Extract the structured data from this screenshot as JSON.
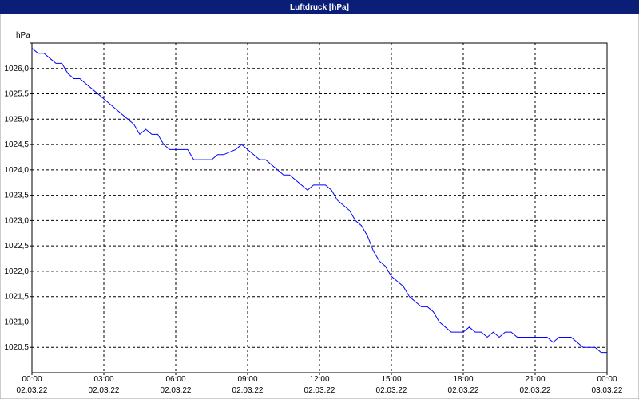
{
  "chart_data": {
    "type": "line",
    "title": "Luftdruck [hPa]",
    "y_label": "hPa",
    "x": [
      0,
      0.25,
      0.5,
      0.75,
      1,
      1.25,
      1.5,
      1.75,
      2,
      2.25,
      2.5,
      2.75,
      3,
      3.25,
      3.5,
      3.75,
      4,
      4.25,
      4.5,
      4.75,
      5,
      5.25,
      5.5,
      5.75,
      6,
      6.5,
      6.75,
      7,
      7.5,
      7.75,
      8,
      8.5,
      8.75,
      9,
      9.25,
      9.5,
      9.75,
      10,
      10.25,
      10.5,
      10.75,
      11,
      11.25,
      11.5,
      11.75,
      12,
      12.25,
      12.5,
      12.75,
      13,
      13.25,
      13.5,
      13.75,
      14,
      14.25,
      14.5,
      14.75,
      15,
      15.25,
      15.5,
      15.75,
      16,
      16.25,
      16.5,
      16.75,
      17,
      17.25,
      17.5,
      18,
      18.25,
      18.5,
      18.75,
      19,
      19.25,
      19.5,
      19.75,
      20,
      20.25,
      20.5,
      21,
      21.5,
      21.75,
      22,
      22.5,
      23,
      23.5,
      23.75,
      24
    ],
    "series": [
      {
        "name": "Luftdruck",
        "color": "#0000ff",
        "values": [
          1026.4,
          1026.3,
          1026.3,
          1026.2,
          1026.1,
          1026.1,
          1025.9,
          1025.8,
          1025.8,
          1025.7,
          1025.6,
          1025.5,
          1025.4,
          1025.3,
          1025.2,
          1025.1,
          1025.0,
          1024.9,
          1024.7,
          1024.8,
          1024.7,
          1024.7,
          1024.5,
          1024.4,
          1024.4,
          1024.4,
          1024.2,
          1024.2,
          1024.2,
          1024.3,
          1024.3,
          1024.4,
          1024.5,
          1024.4,
          1024.3,
          1024.2,
          1024.2,
          1024.1,
          1024.0,
          1023.9,
          1023.9,
          1023.8,
          1023.7,
          1023.6,
          1023.7,
          1023.7,
          1023.7,
          1023.6,
          1023.4,
          1023.3,
          1023.2,
          1023.0,
          1022.9,
          1022.7,
          1022.4,
          1022.2,
          1022.1,
          1021.9,
          1021.8,
          1021.7,
          1021.5,
          1021.4,
          1021.3,
          1021.3,
          1021.2,
          1021.0,
          1020.9,
          1020.8,
          1020.8,
          1020.9,
          1020.8,
          1020.8,
          1020.7,
          1020.8,
          1020.7,
          1020.8,
          1020.8,
          1020.7,
          1020.7,
          1020.7,
          1020.7,
          1020.6,
          1020.7,
          1020.7,
          1020.5,
          1020.5,
          1020.4,
          1020.4
        ]
      }
    ],
    "xlim": [
      0,
      24
    ],
    "xticks": [
      {
        "value": 0,
        "label": "00:00",
        "date": "02.03.22"
      },
      {
        "value": 3,
        "label": "03:00",
        "date": "02.03.22"
      },
      {
        "value": 6,
        "label": "06:00",
        "date": "02.03.22"
      },
      {
        "value": 9,
        "label": "09:00",
        "date": "02.03.22"
      },
      {
        "value": 12,
        "label": "12:00",
        "date": "02.03.22"
      },
      {
        "value": 15,
        "label": "15:00",
        "date": "02.03.22"
      },
      {
        "value": 18,
        "label": "18:00",
        "date": "02.03.22"
      },
      {
        "value": 21,
        "label": "21:00",
        "date": "02.03.22"
      },
      {
        "value": 24,
        "label": "00:00",
        "date": "03.03.22"
      }
    ],
    "ylim": [
      1020,
      1026.5
    ],
    "yticks": [
      {
        "value": 1020.5,
        "label": "1020,5"
      },
      {
        "value": 1021,
        "label": "1021,0"
      },
      {
        "value": 1021.5,
        "label": "1021,5"
      },
      {
        "value": 1022,
        "label": "1022,0"
      },
      {
        "value": 1022.5,
        "label": "1022,5"
      },
      {
        "value": 1023,
        "label": "1023,0"
      },
      {
        "value": 1023.5,
        "label": "1023,5"
      },
      {
        "value": 1024,
        "label": "1024,0"
      },
      {
        "value": 1024.5,
        "label": "1024,5"
      },
      {
        "value": 1025,
        "label": "1025,0"
      },
      {
        "value": 1025.5,
        "label": "1025,5"
      },
      {
        "value": 1026,
        "label": "1026,0"
      },
      1026.5
    ],
    "grid": true
  }
}
